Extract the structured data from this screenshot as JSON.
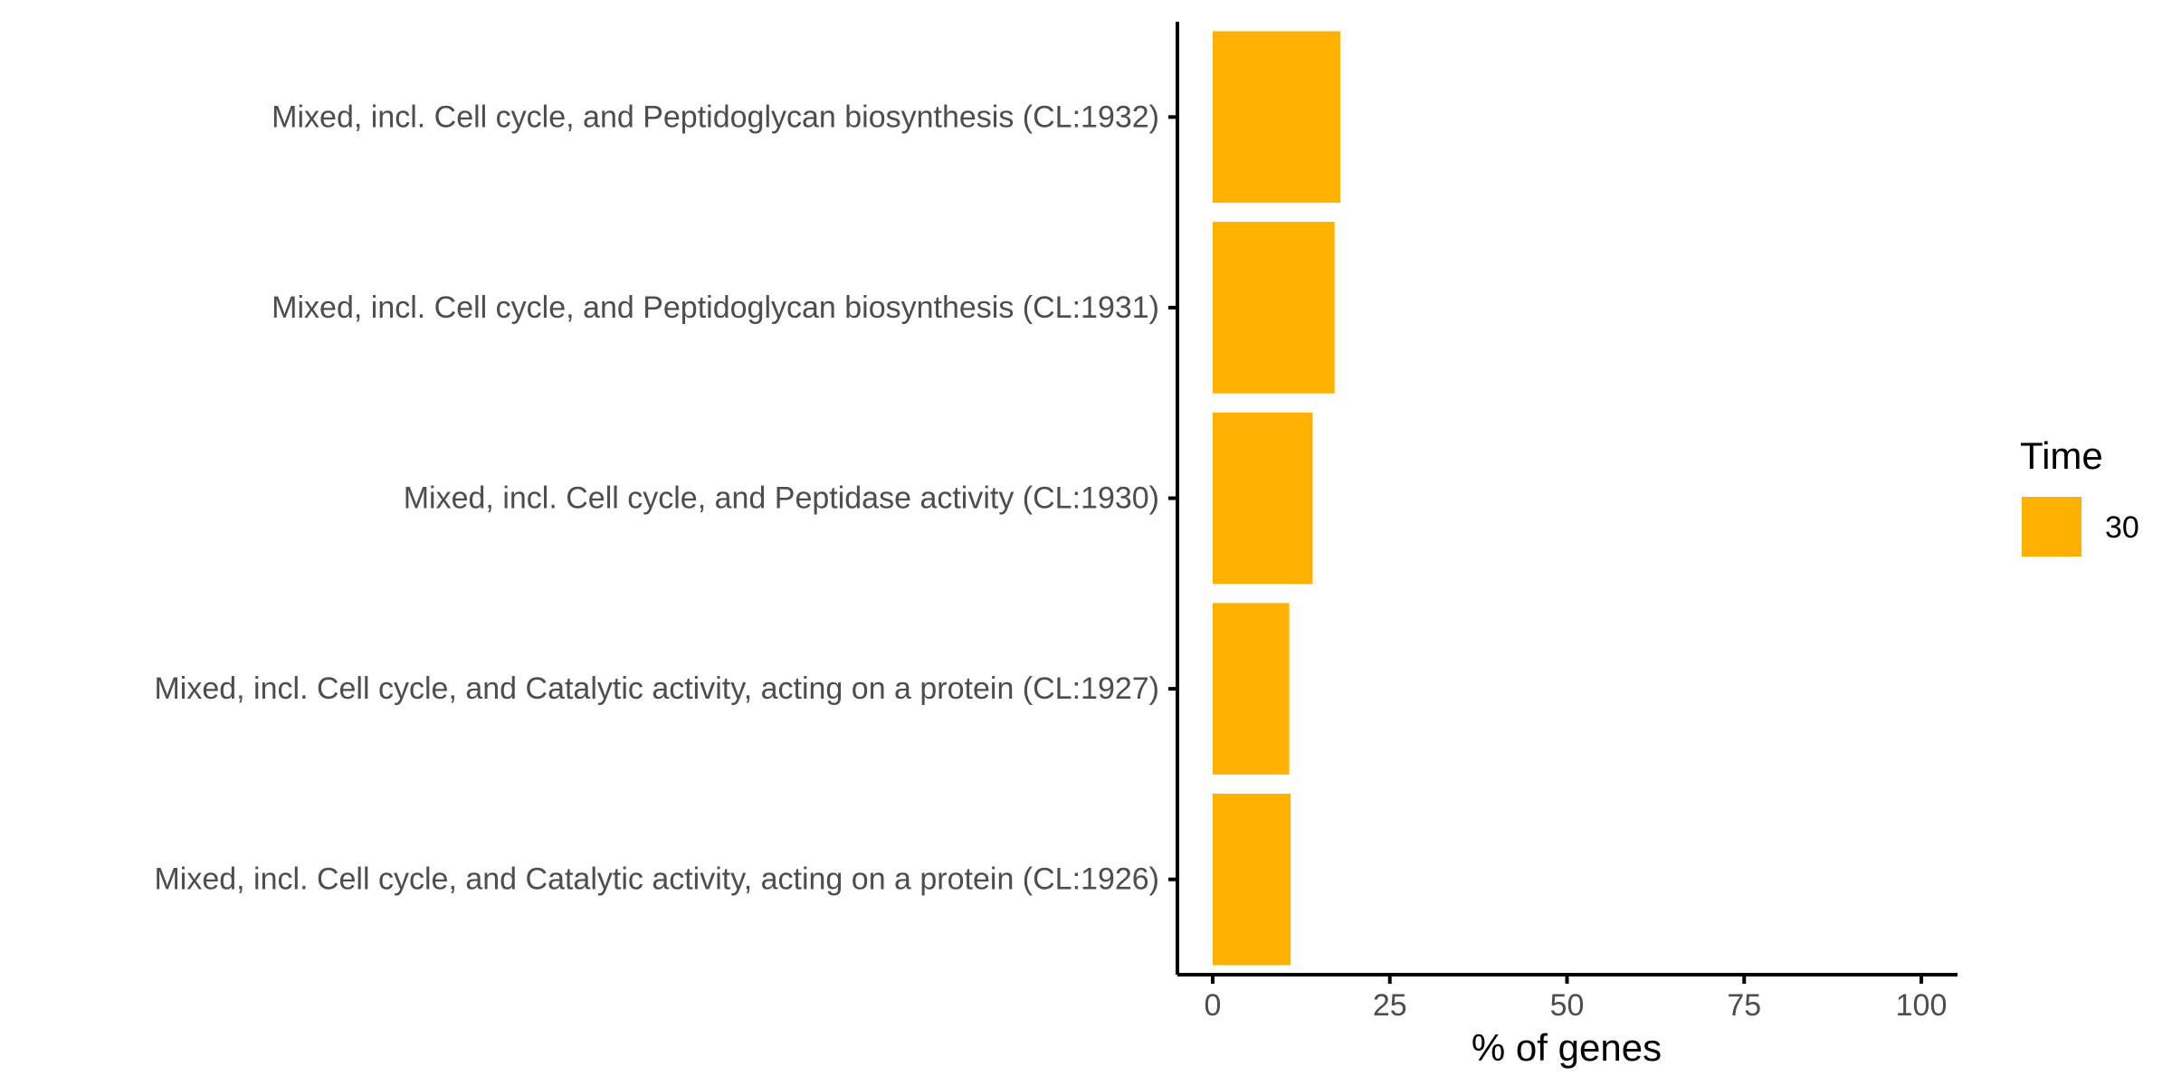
{
  "chart_data": {
    "type": "bar",
    "orientation": "horizontal",
    "categories": [
      "Mixed, incl. Cell cycle, and Peptidoglycan biosynthesis (CL:1932)",
      "Mixed, incl. Cell cycle, and Peptidoglycan biosynthesis (CL:1931)",
      "Mixed, incl. Cell cycle, and Peptidase activity (CL:1930)",
      "Mixed, incl. Cell cycle, and Catalytic activity, acting on a protein (CL:1927)",
      "Mixed, incl. Cell cycle, and Catalytic activity, acting on a protein (CL:1926)"
    ],
    "series": [
      {
        "name": "30",
        "values": [
          18,
          17.2,
          14.1,
          10.8,
          11
        ]
      }
    ],
    "xlabel": "% of genes",
    "ylabel": "",
    "xlim": [
      0,
      100
    ],
    "xticks": [
      0,
      25,
      50,
      75,
      100
    ],
    "xtick_labels": [
      "0",
      "25",
      "50",
      "75",
      "100"
    ],
    "grid": false,
    "legend": {
      "title": "Time",
      "position": "right",
      "entries": [
        "30"
      ]
    },
    "colors": {
      "bar": "#FFB000",
      "axis": "#000000",
      "text": "#4d4d4d"
    }
  }
}
